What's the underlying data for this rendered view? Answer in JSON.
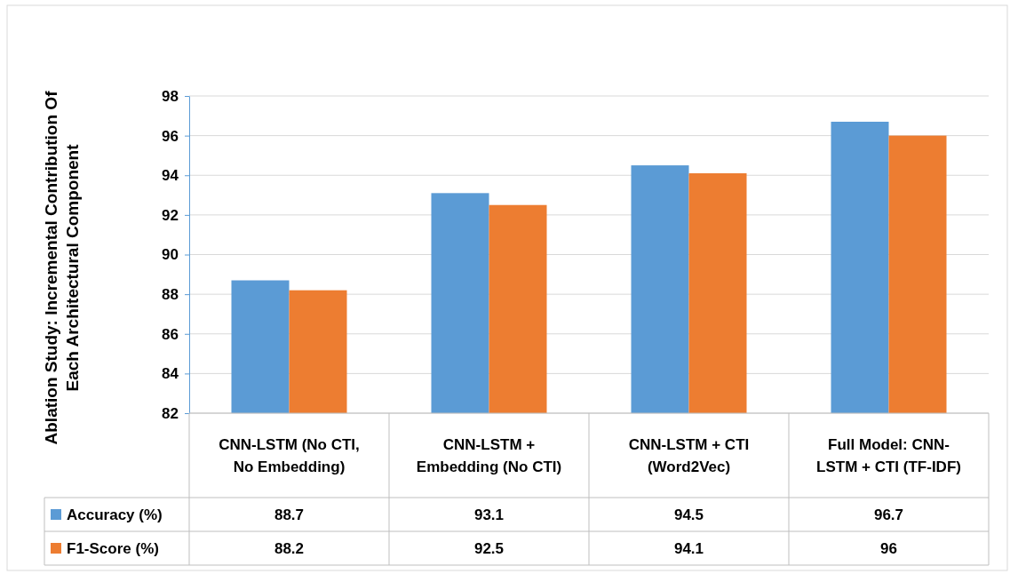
{
  "chart_data": {
    "type": "bar",
    "ylabel": "Ablation Study: Incremental Contribution Of Each Architectural Component",
    "categories": [
      "CNN-LSTM (No CTI, No Embedding)",
      "CNN-LSTM + Embedding (No CTI)",
      "CNN-LSTM + CTI (Word2Vec)",
      "Full Model: CNN-LSTM + CTI (TF-IDF)"
    ],
    "series": [
      {
        "name": "Accuracy (%)",
        "color": "#5b9bd5",
        "values": [
          88.7,
          93.1,
          94.5,
          96.7
        ]
      },
      {
        "name": "F1-Score (%)",
        "color": "#ed7d31",
        "values": [
          88.2,
          92.5,
          94.1,
          96
        ]
      }
    ],
    "ylim": [
      82,
      98
    ],
    "yticks": [
      82,
      84,
      86,
      88,
      90,
      92,
      94,
      96,
      98
    ],
    "grid": "y",
    "legend": "bottom",
    "data_labels": true
  }
}
